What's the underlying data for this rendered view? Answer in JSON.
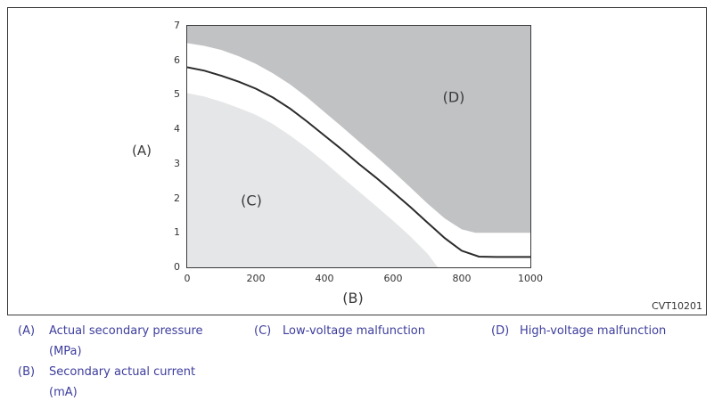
{
  "figure": {
    "code": "CVT10201"
  },
  "chart_data": {
    "type": "area",
    "title": "",
    "xlabel": "(B)",
    "ylabel": "(A)",
    "xlim": [
      0,
      1000
    ],
    "ylim": [
      0,
      7
    ],
    "x_ticks": [
      "0",
      "200",
      "400",
      "600",
      "800",
      "1000"
    ],
    "y_ticks": [
      "0",
      "1",
      "2",
      "3",
      "4",
      "5",
      "6",
      "7"
    ],
    "grid": false,
    "legend_position": "below-figure",
    "curve": {
      "name": "secondary-pressure-vs-current",
      "color": "#2b2b2b",
      "stroke_width": 2,
      "points": [
        [
          0,
          5.8
        ],
        [
          50,
          5.7
        ],
        [
          100,
          5.55
        ],
        [
          150,
          5.38
        ],
        [
          200,
          5.18
        ],
        [
          250,
          4.92
        ],
        [
          300,
          4.6
        ],
        [
          350,
          4.22
        ],
        [
          400,
          3.82
        ],
        [
          450,
          3.42
        ],
        [
          500,
          3.0
        ],
        [
          550,
          2.6
        ],
        [
          600,
          2.18
        ],
        [
          650,
          1.75
        ],
        [
          700,
          1.3
        ],
        [
          750,
          0.85
        ],
        [
          800,
          0.48
        ],
        [
          850,
          0.31
        ],
        [
          900,
          0.3
        ],
        [
          1000,
          0.3
        ]
      ]
    },
    "regions": {
      "C": {
        "label": "(C)",
        "meaning": "Low-voltage malfunction",
        "fill": "#e5e6e8",
        "boundary_points": [
          [
            0,
            5.05
          ],
          [
            50,
            4.95
          ],
          [
            100,
            4.8
          ],
          [
            150,
            4.62
          ],
          [
            200,
            4.42
          ],
          [
            250,
            4.15
          ],
          [
            300,
            3.82
          ],
          [
            350,
            3.45
          ],
          [
            400,
            3.05
          ],
          [
            450,
            2.62
          ],
          [
            500,
            2.2
          ],
          [
            550,
            1.78
          ],
          [
            600,
            1.35
          ],
          [
            650,
            0.9
          ],
          [
            700,
            0.4
          ],
          [
            730,
            0
          ]
        ]
      },
      "D": {
        "label": "(D)",
        "meaning": "High-voltage malfunction",
        "fill": "#c1c2c4",
        "boundary_points": [
          [
            0,
            6.5
          ],
          [
            50,
            6.42
          ],
          [
            100,
            6.3
          ],
          [
            150,
            6.12
          ],
          [
            200,
            5.9
          ],
          [
            250,
            5.62
          ],
          [
            300,
            5.3
          ],
          [
            350,
            4.92
          ],
          [
            400,
            4.5
          ],
          [
            450,
            4.08
          ],
          [
            500,
            3.65
          ],
          [
            550,
            3.22
          ],
          [
            600,
            2.78
          ],
          [
            650,
            2.32
          ],
          [
            700,
            1.85
          ],
          [
            750,
            1.42
          ],
          [
            800,
            1.1
          ],
          [
            840,
            1.0
          ],
          [
            1000,
            1.0
          ]
        ]
      }
    },
    "plot_border_color": "#3a3a3a",
    "tick_color": "#333333"
  },
  "legend": {
    "text_color": "#3d3d9e",
    "items": [
      {
        "key": "(A)",
        "line1": "Actual secondary pressure",
        "line2": "(MPa)"
      },
      {
        "key": "(B)",
        "line1": "Secondary actual current",
        "line2": "(mA)"
      },
      {
        "key": "(C)",
        "line1": "Low-voltage malfunction",
        "line2": ""
      },
      {
        "key": "(D)",
        "line1": "High-voltage malfunction",
        "line2": ""
      }
    ]
  }
}
